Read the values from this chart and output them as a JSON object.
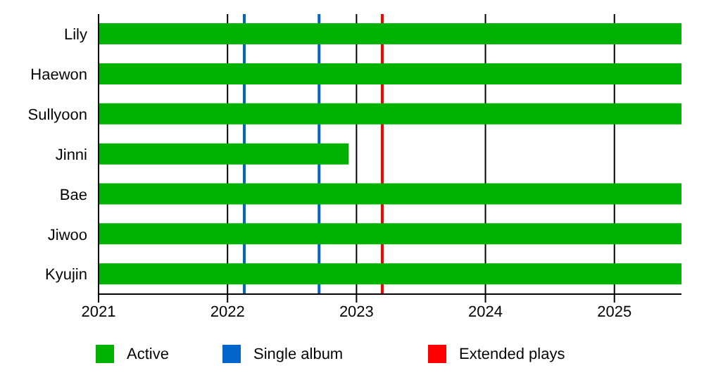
{
  "chart_data": {
    "type": "bar",
    "orientation": "horizontal",
    "categories": [
      "Lily",
      "Haewon",
      "Sullyoon",
      "Jinni",
      "Bae",
      "Jiwoo",
      "Kyujin"
    ],
    "series": [
      {
        "name": "Active",
        "color": "#00b200",
        "values": [
          4.52,
          4.52,
          4.52,
          1.94,
          4.52,
          4.52,
          4.52
        ],
        "base": [
          2021,
          2021,
          2021,
          2021,
          2021,
          2021,
          2021
        ]
      }
    ],
    "xlim": [
      2021,
      2025.52
    ],
    "xticks": [
      2021,
      2022,
      2023,
      2024,
      2025
    ],
    "grid": "x",
    "ref_lines": [
      {
        "axis": "x",
        "value": 2022.13,
        "label": "Single album",
        "color": "#0066cc"
      },
      {
        "axis": "x",
        "value": 2022.71,
        "color": "#0066cc"
      },
      {
        "axis": "x",
        "value": 2023.2,
        "label": "Extended plays",
        "color": "#ff0000"
      }
    ],
    "legend": "bottom"
  }
}
